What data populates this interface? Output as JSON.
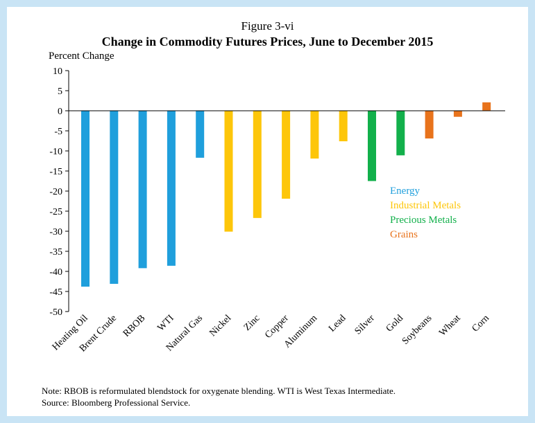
{
  "figure_label": "Figure 3-vi",
  "chart_data": {
    "type": "bar",
    "title": "Change in Commodity Futures Prices, June to December 2015",
    "xlabel": "",
    "ylabel": "Percent Change",
    "ylim": [
      -50,
      10
    ],
    "yticks": [
      10,
      5,
      0,
      -5,
      -10,
      -15,
      -20,
      -25,
      -30,
      -35,
      -40,
      -45,
      -50
    ],
    "grid": false,
    "legend_position": "right",
    "categories": [
      "Heating Oil",
      "Brent Crude",
      "RBOB",
      "WTI",
      "Natural Gas",
      "Nickel",
      "Zinc",
      "Copper",
      "Aluminum",
      "Lead",
      "Silver",
      "Gold",
      "Soybeans",
      "Wheat",
      "Corn"
    ],
    "values": [
      -43.8,
      -43.1,
      -39.2,
      -38.6,
      -11.7,
      -30.1,
      -26.7,
      -21.9,
      -11.9,
      -7.6,
      -17.5,
      -11.1,
      -6.9,
      -1.5,
      2.1
    ],
    "groups": [
      "Energy",
      "Energy",
      "Energy",
      "Energy",
      "Energy",
      "Industrial Metals",
      "Industrial Metals",
      "Industrial Metals",
      "Industrial Metals",
      "Industrial Metals",
      "Precious Metals",
      "Precious Metals",
      "Grains",
      "Grains",
      "Grains"
    ],
    "legend": [
      {
        "name": "Energy",
        "color": "#1f9fdc"
      },
      {
        "name": "Industrial Metals",
        "color": "#fdc60a"
      },
      {
        "name": "Precious Metals",
        "color": "#12b04b"
      },
      {
        "name": "Grains",
        "color": "#e8731c"
      }
    ]
  },
  "notes": {
    "note": "Note: RBOB is reformulated blendstock for oxygenate blending. WTI is West Texas Intermediate.",
    "source": "Source: Bloomberg Professional Service."
  }
}
